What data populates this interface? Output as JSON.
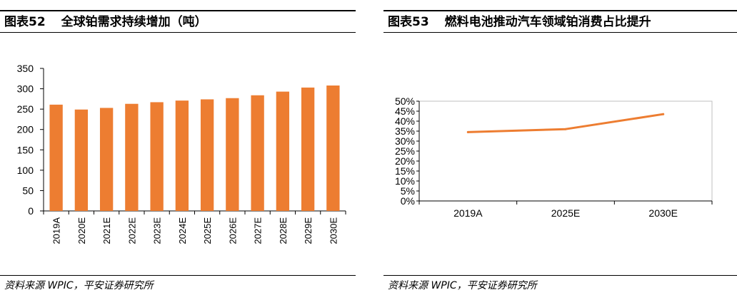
{
  "left": {
    "fig_label": "图表52",
    "fig_title": "全球铂需求持续增加（吨）",
    "source": "资料来源 WPIC，平安证券研究所"
  },
  "right": {
    "fig_label": "图表53",
    "fig_title": "燃料电池推动汽车领域铂消费占比提升",
    "source": "资料来源 WPIC，平安证券研究所"
  },
  "colors": {
    "series": "#ED7D31",
    "axis": "#000000",
    "frame": "#bfbfbf"
  },
  "chart_data": [
    {
      "type": "bar",
      "categories": [
        "2019A",
        "2020E",
        "2021E",
        "2022E",
        "2023E",
        "2024E",
        "2025E",
        "2026E",
        "2027E",
        "2028E",
        "2029E",
        "2030E"
      ],
      "values": [
        261,
        249,
        253,
        263,
        267,
        271,
        274,
        277,
        284,
        293,
        303,
        308
      ],
      "yticks": [
        0,
        50,
        100,
        150,
        200,
        250,
        300,
        350
      ],
      "ylim": [
        0,
        350
      ],
      "grid": false,
      "legend": "none"
    },
    {
      "type": "line",
      "categories": [
        "2019A",
        "2025E",
        "2030E"
      ],
      "values": [
        34.5,
        36,
        43.5
      ],
      "yticks": [
        "0%",
        "5%",
        "10%",
        "15%",
        "20%",
        "25%",
        "30%",
        "35%",
        "40%",
        "45%",
        "50%"
      ],
      "ylim": [
        0,
        50
      ],
      "grid": false,
      "legend": "none"
    }
  ]
}
